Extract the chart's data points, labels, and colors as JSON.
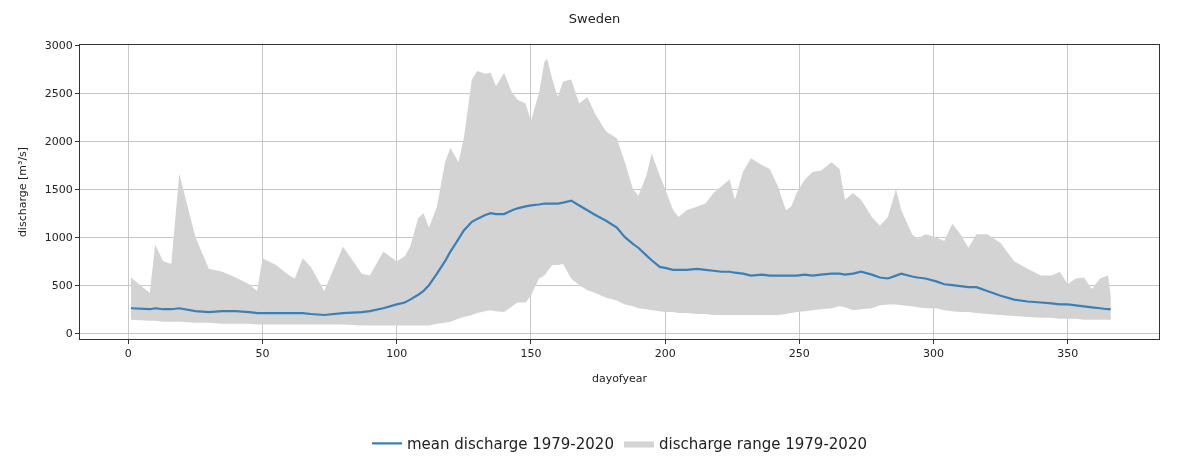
{
  "chart_data": {
    "type": "line",
    "title": "Sweden",
    "xlabel": "dayofyear",
    "ylabel": "discharge [m³/s]",
    "xlim": [
      -18,
      384
    ],
    "xticks": [
      0,
      50,
      100,
      150,
      200,
      250,
      300,
      350
    ],
    "ylim": [
      -60,
      3000
    ],
    "yticks": [
      0,
      500,
      1000,
      1500,
      2000,
      2500,
      3000
    ],
    "grid": true,
    "legend": "bottom",
    "marker": "none",
    "line_style": "solid",
    "series": [
      {
        "name": "mean discharge 1979-2020",
        "color": "#3a7fb6",
        "x": [
          1,
          8,
          10,
          13,
          16,
          19,
          25,
          30,
          35,
          40,
          45,
          48,
          50,
          55,
          60,
          62,
          65,
          68,
          73,
          80,
          87,
          90,
          95,
          100,
          103,
          105,
          108,
          110,
          112,
          115,
          118,
          120,
          123,
          125,
          128,
          130,
          133,
          135,
          137,
          140,
          143,
          145,
          148,
          150,
          153,
          155,
          156,
          158,
          160,
          162,
          165,
          168,
          171,
          174,
          178,
          182,
          185,
          188,
          190,
          193,
          195,
          198,
          200,
          203,
          205,
          208,
          212,
          215,
          218,
          221,
          224,
          226,
          229,
          232,
          236,
          239,
          242,
          245,
          247,
          249,
          252,
          255,
          258,
          262,
          265,
          267,
          270,
          273,
          277,
          280,
          283,
          286,
          288,
          292,
          294,
          297,
          301,
          304,
          307,
          310,
          313,
          316,
          320,
          325,
          330,
          335,
          340,
          344,
          347,
          350,
          353,
          356,
          359,
          362,
          365,
          366
        ],
        "values": [
          260,
          250,
          260,
          250,
          250,
          260,
          230,
          220,
          230,
          230,
          220,
          210,
          210,
          210,
          210,
          210,
          210,
          200,
          190,
          210,
          220,
          230,
          260,
          300,
          320,
          350,
          400,
          440,
          500,
          620,
          750,
          850,
          980,
          1070,
          1160,
          1190,
          1230,
          1250,
          1240,
          1240,
          1280,
          1300,
          1320,
          1330,
          1340,
          1350,
          1350,
          1350,
          1350,
          1360,
          1380,
          1330,
          1280,
          1230,
          1170,
          1100,
          1000,
          930,
          890,
          810,
          760,
          690,
          680,
          660,
          660,
          660,
          670,
          660,
          650,
          640,
          640,
          630,
          620,
          600,
          610,
          600,
          600,
          600,
          600,
          600,
          610,
          600,
          610,
          620,
          620,
          610,
          620,
          640,
          610,
          580,
          570,
          600,
          620,
          590,
          580,
          570,
          540,
          510,
          500,
          490,
          480,
          480,
          440,
          390,
          350,
          330,
          320,
          310,
          300,
          300,
          290,
          280,
          270,
          260,
          250,
          250
        ]
      },
      {
        "name": "discharge range 1979-2020",
        "color": "#d3d3d3",
        "x": [
          1,
          8,
          10,
          13,
          16,
          19,
          25,
          30,
          35,
          40,
          45,
          48,
          50,
          55,
          60,
          62,
          65,
          68,
          73,
          80,
          87,
          90,
          95,
          100,
          103,
          105,
          108,
          110,
          112,
          115,
          118,
          120,
          123,
          125,
          128,
          130,
          133,
          135,
          137,
          140,
          143,
          145,
          148,
          150,
          153,
          155,
          156,
          158,
          160,
          162,
          165,
          168,
          171,
          174,
          178,
          182,
          185,
          188,
          190,
          193,
          195,
          198,
          200,
          203,
          205,
          208,
          212,
          215,
          218,
          221,
          224,
          226,
          229,
          232,
          236,
          239,
          242,
          245,
          247,
          249,
          252,
          255,
          258,
          262,
          265,
          267,
          270,
          273,
          277,
          280,
          283,
          286,
          288,
          292,
          294,
          297,
          301,
          304,
          307,
          310,
          313,
          316,
          320,
          325,
          330,
          335,
          340,
          344,
          347,
          350,
          353,
          356,
          359,
          362,
          365,
          366
        ],
        "values": [
          null,
          null,
          null,
          null,
          null,
          null,
          null,
          null,
          null,
          null,
          null,
          null,
          null,
          null,
          null,
          null,
          null,
          null,
          null,
          null,
          null,
          null,
          null,
          null,
          null,
          null,
          null,
          null,
          null,
          null,
          null,
          null,
          null,
          null,
          null,
          null,
          null,
          null,
          null,
          null,
          null,
          null,
          null,
          null,
          null,
          null,
          null,
          null,
          null,
          null,
          null,
          null,
          null,
          null,
          null,
          null,
          null,
          null,
          null,
          null,
          null,
          null,
          null,
          null,
          null,
          null,
          null,
          null,
          null,
          null,
          null,
          null,
          null,
          null,
          null,
          null,
          null,
          null,
          null,
          null,
          null,
          null,
          null,
          null,
          null,
          null,
          null,
          null,
          null,
          null,
          null,
          null,
          null,
          null,
          null,
          null,
          null,
          null,
          null,
          null,
          null,
          null,
          null,
          null,
          null,
          null,
          null,
          null,
          null,
          null,
          null,
          null,
          null,
          null,
          null,
          null
        ],
        "upper": [
          580,
          420,
          920,
          750,
          720,
          1660,
          1000,
          670,
          640,
          580,
          510,
          440,
          780,
          710,
          600,
          570,
          780,
          690,
          440,
          900,
          620,
          600,
          850,
          750,
          800,
          900,
          1200,
          1250,
          1100,
          1320,
          1780,
          1930,
          1780,
          2030,
          2640,
          2730,
          2700,
          2710,
          2570,
          2710,
          2500,
          2430,
          2390,
          2210,
          2500,
          2820,
          2860,
          2640,
          2460,
          2620,
          2640,
          2390,
          2460,
          2280,
          2100,
          2030,
          1780,
          1500,
          1430,
          1640,
          1870,
          1640,
          1500,
          1280,
          1210,
          1280,
          1320,
          1350,
          1460,
          1530,
          1600,
          1390,
          1680,
          1820,
          1750,
          1710,
          1530,
          1280,
          1320,
          1460,
          1600,
          1680,
          1690,
          1780,
          1710,
          1390,
          1460,
          1390,
          1210,
          1120,
          1210,
          1500,
          1280,
          1030,
          980,
          1030,
          1000,
          960,
          1140,
          1030,
          890,
          1030,
          1030,
          940,
          750,
          670,
          600,
          600,
          640,
          510,
          570,
          580,
          460,
          570,
          600,
          390
        ],
        "lower": [
          140,
          130,
          130,
          120,
          120,
          120,
          110,
          110,
          100,
          100,
          100,
          90,
          90,
          90,
          90,
          90,
          90,
          90,
          90,
          90,
          80,
          80,
          80,
          80,
          80,
          80,
          80,
          80,
          80,
          100,
          110,
          120,
          150,
          170,
          190,
          210,
          230,
          240,
          230,
          220,
          280,
          320,
          320,
          390,
          570,
          600,
          640,
          710,
          710,
          720,
          570,
          500,
          450,
          420,
          370,
          340,
          300,
          280,
          260,
          250,
          240,
          230,
          220,
          220,
          210,
          210,
          200,
          200,
          190,
          190,
          190,
          190,
          190,
          190,
          190,
          190,
          190,
          200,
          210,
          220,
          230,
          240,
          250,
          260,
          280,
          270,
          240,
          250,
          260,
          290,
          300,
          300,
          290,
          280,
          270,
          260,
          260,
          240,
          230,
          220,
          220,
          210,
          200,
          190,
          180,
          170,
          160,
          160,
          150,
          150,
          150,
          140,
          140,
          140,
          140,
          140
        ]
      }
    ]
  }
}
